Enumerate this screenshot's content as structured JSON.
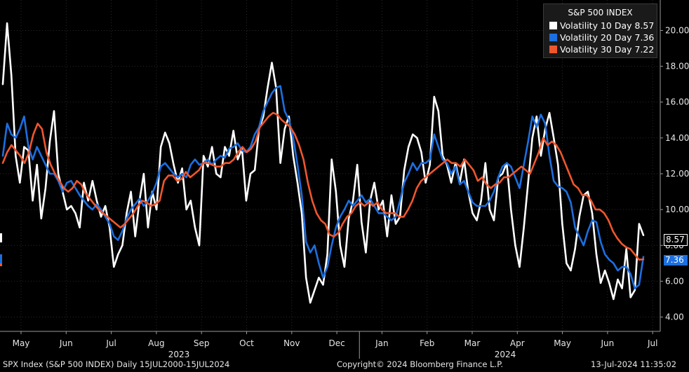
{
  "chart_data": {
    "type": "line",
    "legend_title": "S&P 500 INDEX",
    "legend_placement": "top-right",
    "ylim": [
      3.2,
      21.7
    ],
    "yticks": [
      "4.00",
      "6.00",
      "8.00",
      "10.00",
      "12.00",
      "14.00",
      "16.00",
      "18.00",
      "20.00"
    ],
    "ytick_values": [
      4,
      6,
      8,
      10,
      12,
      14,
      16,
      18,
      20
    ],
    "months": [
      "May",
      "Jun",
      "Jul",
      "Aug",
      "Sep",
      "Oct",
      "Nov",
      "Dec",
      "Jan",
      "Feb",
      "Mar",
      "Apr",
      "May",
      "Jun",
      "Jul"
    ],
    "years": [
      "2023",
      "2024"
    ],
    "series": [
      {
        "name": "Volatility 10 Day",
        "last_label": "8.57",
        "last_value": 8.57,
        "color": "#ffffff",
        "values": [
          17.0,
          20.4,
          17.5,
          13.0,
          11.5,
          13.5,
          13.3,
          10.5,
          12.5,
          9.5,
          11.2,
          13.8,
          15.5,
          12.0,
          11.0,
          10.0,
          10.2,
          9.8,
          9.0,
          11.5,
          10.5,
          11.6,
          10.5,
          9.6,
          10.2,
          9.0,
          6.8,
          7.5,
          8.0,
          9.8,
          11.0,
          8.5,
          10.5,
          12.0,
          9.0,
          11.0,
          10.0,
          13.5,
          14.3,
          13.7,
          12.5,
          11.5,
          12.3,
          10.0,
          10.5,
          9.0,
          8.0,
          13.0,
          12.4,
          13.5,
          12.0,
          11.8,
          13.5,
          13.0,
          14.4,
          12.8,
          13.4,
          10.5,
          12.0,
          12.2,
          14.5,
          15.2,
          16.8,
          18.2,
          16.8,
          12.6,
          14.5,
          15.2,
          13.0,
          11.5,
          9.8,
          6.2,
          4.8,
          5.5,
          6.2,
          5.8,
          7.5,
          12.8,
          11.0,
          8.0,
          6.8,
          9.5,
          10.5,
          12.5,
          9.3,
          7.6,
          10.5,
          11.5,
          10.0,
          10.5,
          8.5,
          10.8,
          9.2,
          9.6,
          12.2,
          13.5,
          14.2,
          14.0,
          13.2,
          11.5,
          12.5,
          16.3,
          15.5,
          13.0,
          12.5,
          11.5,
          12.6,
          11.5,
          12.8,
          11.0,
          9.8,
          9.4,
          10.5,
          12.6,
          10.0,
          9.4,
          11.8,
          12.0,
          12.6,
          10.0,
          8.0,
          6.8,
          9.0,
          11.5,
          14.0,
          15.2,
          13.0,
          14.5,
          15.4,
          14.0,
          12.5,
          9.2,
          7.0,
          6.6,
          7.8,
          9.6,
          10.8,
          11.0,
          9.8,
          7.5,
          5.9,
          6.6,
          5.9,
          5.0,
          6.1,
          5.6,
          7.8,
          5.1,
          5.5,
          9.2,
          8.57
        ]
      },
      {
        "name": "Volatility 20 Day",
        "last_label": "7.36",
        "last_value": 7.36,
        "color": "#1c6fe0",
        "values": [
          13.0,
          14.8,
          14.2,
          14.0,
          14.5,
          15.2,
          13.5,
          12.8,
          13.5,
          13.0,
          12.5,
          12.0,
          12.0,
          11.6,
          11.0,
          11.5,
          11.6,
          11.2,
          10.8,
          10.5,
          10.2,
          10.0,
          10.3,
          10.0,
          9.6,
          9.2,
          8.5,
          8.3,
          8.8,
          9.5,
          10.0,
          10.3,
          10.6,
          10.2,
          10.5,
          10.9,
          11.5,
          12.4,
          12.6,
          12.3,
          12.0,
          11.8,
          12.0,
          11.8,
          12.5,
          12.8,
          12.5,
          12.6,
          12.8,
          12.5,
          12.8,
          13.0,
          12.9,
          13.4,
          13.5,
          13.7,
          13.3,
          13.2,
          13.5,
          14.2,
          14.6,
          15.5,
          16.0,
          16.5,
          16.8,
          16.9,
          15.5,
          15.0,
          14.0,
          12.5,
          10.8,
          8.2,
          7.6,
          8.0,
          7.0,
          6.2,
          6.8,
          8.0,
          9.0,
          9.6,
          10.0,
          10.5,
          10.2,
          10.5,
          10.8,
          10.4,
          10.6,
          10.2,
          9.8,
          9.8,
          9.6,
          9.4,
          9.6,
          10.5,
          11.5,
          12.0,
          12.6,
          12.2,
          12.6,
          12.6,
          12.8,
          14.2,
          13.5,
          12.8,
          12.6,
          12.0,
          12.4,
          11.4,
          11.6,
          11.0,
          10.4,
          10.2,
          10.2,
          10.2,
          10.5,
          11.0,
          11.8,
          12.4,
          12.6,
          12.4,
          11.8,
          11.2,
          12.5,
          13.8,
          15.2,
          14.6,
          15.3,
          14.8,
          13.0,
          11.6,
          11.3,
          11.2,
          11.0,
          10.4,
          9.0,
          8.5,
          8.0,
          8.8,
          9.4,
          9.3,
          8.2,
          7.5,
          7.2,
          7.0,
          6.6,
          6.8,
          6.8,
          6.4,
          5.6,
          5.8,
          7.36
        ]
      },
      {
        "name": "Volatility 30 Day",
        "last_label": "7.22",
        "last_value": 7.22,
        "color": "#f0562d",
        "values": [
          12.6,
          13.2,
          13.6,
          13.3,
          13.0,
          12.6,
          13.2,
          14.2,
          14.8,
          14.5,
          13.2,
          12.5,
          12.0,
          11.6,
          11.2,
          11.0,
          11.2,
          11.6,
          11.4,
          10.9,
          10.6,
          10.3,
          10.0,
          9.8,
          9.6,
          9.4,
          9.2,
          9.0,
          9.2,
          9.5,
          9.8,
          10.2,
          10.5,
          10.4,
          10.2,
          10.3,
          10.5,
          11.6,
          11.9,
          11.9,
          11.6,
          11.7,
          12.1,
          11.8,
          12.0,
          12.2,
          12.6,
          12.6,
          12.5,
          12.4,
          12.4,
          12.6,
          12.6,
          12.8,
          13.2,
          13.5,
          13.2,
          13.4,
          13.8,
          14.6,
          14.9,
          15.2,
          15.4,
          15.3,
          15.0,
          14.8,
          14.6,
          14.2,
          13.6,
          12.8,
          11.5,
          10.5,
          9.8,
          9.4,
          9.2,
          8.6,
          8.5,
          8.7,
          9.2,
          9.6,
          9.8,
          10.2,
          10.4,
          10.2,
          10.4,
          10.2,
          10.4,
          10.0,
          9.8,
          9.8,
          9.8,
          9.6,
          9.6,
          10.0,
          10.5,
          11.2,
          11.6,
          11.8,
          12.0,
          12.2,
          12.4,
          12.6,
          12.8,
          12.6,
          12.6,
          12.4,
          12.8,
          12.5,
          12.2,
          11.6,
          11.8,
          11.4,
          11.2,
          11.4,
          11.5,
          11.8,
          11.8,
          12.0,
          12.2,
          12.4,
          12.2,
          12.0,
          12.6,
          13.2,
          14.0,
          13.6,
          13.8,
          13.6,
          13.2,
          12.6,
          12.0,
          11.4,
          11.2,
          10.8,
          10.8,
          10.5,
          10.0,
          10.0,
          9.8,
          9.4,
          8.8,
          8.4,
          8.1,
          7.9,
          7.8,
          7.5,
          7.2,
          7.22
        ]
      }
    ]
  },
  "footer": {
    "left": "SPX Index (S&P 500 INDEX)  Daily 15JUL2000-15JUL2024",
    "center": "Copyright© 2024 Bloomberg Finance L.P.",
    "right": "13-Jul-2024 11:35:02"
  }
}
